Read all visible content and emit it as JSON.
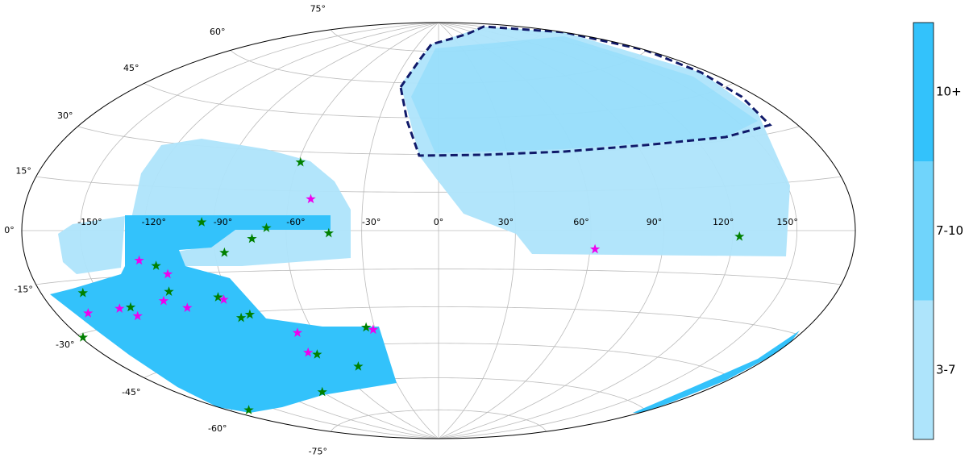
{
  "map": {
    "projection": "hammer",
    "graticule": {
      "lon_ticks": [
        {
          "value": -150,
          "label": "-150°"
        },
        {
          "value": -120,
          "label": "-120°"
        },
        {
          "value": -90,
          "label": "-90°"
        },
        {
          "value": -60,
          "label": "-60°"
        },
        {
          "value": -30,
          "label": "-30°"
        },
        {
          "value": 0,
          "label": "0°"
        },
        {
          "value": 30,
          "label": "30°"
        },
        {
          "value": 60,
          "label": "60°"
        },
        {
          "value": 90,
          "label": "90°"
        },
        {
          "value": 120,
          "label": "120°"
        },
        {
          "value": 150,
          "label": "150°"
        }
      ],
      "lat_ticks": [
        {
          "value": 75,
          "label": "75°"
        },
        {
          "value": 60,
          "label": "60°"
        },
        {
          "value": 45,
          "label": "45°"
        },
        {
          "value": 30,
          "label": "30°"
        },
        {
          "value": 15,
          "label": "15°"
        },
        {
          "value": 0,
          "label": "0°"
        },
        {
          "value": -15,
          "label": "-15°"
        },
        {
          "value": -30,
          "label": "-30°"
        },
        {
          "value": -45,
          "label": "-45°"
        },
        {
          "value": -60,
          "label": "-60°"
        },
        {
          "value": -75,
          "label": "-75°"
        }
      ]
    },
    "colorbar": {
      "labels": [
        "3-7",
        "7-10",
        "10+"
      ],
      "colors": [
        "#aee4fb",
        "#70d4fb",
        "#33c2fb"
      ]
    },
    "markers": [
      {
        "lon": -59,
        "lat": 26,
        "color": "#008000"
      },
      {
        "lon": -95,
        "lat": 3,
        "color": "#008000"
      },
      {
        "lon": -68,
        "lat": 1,
        "color": "#008000"
      },
      {
        "lon": -74,
        "lat": -3,
        "color": "#008000"
      },
      {
        "lon": -43,
        "lat": -1,
        "color": "#008000"
      },
      {
        "lon": -86,
        "lat": -8,
        "color": "#008000"
      },
      {
        "lon": -117,
        "lat": -12,
        "color": "#008000"
      },
      {
        "lon": -116,
        "lat": -21,
        "color": "#008000"
      },
      {
        "lon": -158,
        "lat": -19,
        "color": "#008000"
      },
      {
        "lon": -139,
        "lat": -25,
        "color": "#008000"
      },
      {
        "lon": -95,
        "lat": -24,
        "color": "#008000"
      },
      {
        "lon": -90,
        "lat": -32,
        "color": "#008000"
      },
      {
        "lon": -85,
        "lat": -31,
        "color": "#008000"
      },
      {
        "lon": -34,
        "lat": -38,
        "color": "#008000"
      },
      {
        "lon": -66,
        "lat": -48,
        "color": "#008000"
      },
      {
        "lon": -48,
        "lat": -54,
        "color": "#008000"
      },
      {
        "lon": -90,
        "lat": -63,
        "color": "#008000"
      },
      {
        "lon": -168,
        "lat": -62,
        "color": "#008000"
      },
      {
        "lon": -179,
        "lat": -31,
        "color": "#008000"
      },
      {
        "lon": 123,
        "lat": -2,
        "color": "#008000"
      },
      {
        "lon": -51,
        "lat": 12,
        "color": "#ee00ee"
      },
      {
        "lon": -124,
        "lat": -10,
        "color": "#ee00ee"
      },
      {
        "lon": -113,
        "lat": -15,
        "color": "#ee00ee"
      },
      {
        "lon": -121,
        "lat": -24,
        "color": "#ee00ee"
      },
      {
        "lon": -112,
        "lat": -27,
        "color": "#ee00ee"
      },
      {
        "lon": -145,
        "lat": -25,
        "color": "#ee00ee"
      },
      {
        "lon": -163,
        "lat": -25,
        "color": "#ee00ee"
      },
      {
        "lon": -139,
        "lat": -28,
        "color": "#ee00ee"
      },
      {
        "lon": -93,
        "lat": -25,
        "color": "#ee00ee"
      },
      {
        "lon": -68,
        "lat": -39,
        "color": "#ee00ee"
      },
      {
        "lon": -31,
        "lat": -39,
        "color": "#ee00ee"
      },
      {
        "lon": -70,
        "lat": -47,
        "color": "#ee00ee"
      },
      {
        "lon": 62,
        "lat": -7,
        "color": "#ee00ee"
      }
    ]
  }
}
